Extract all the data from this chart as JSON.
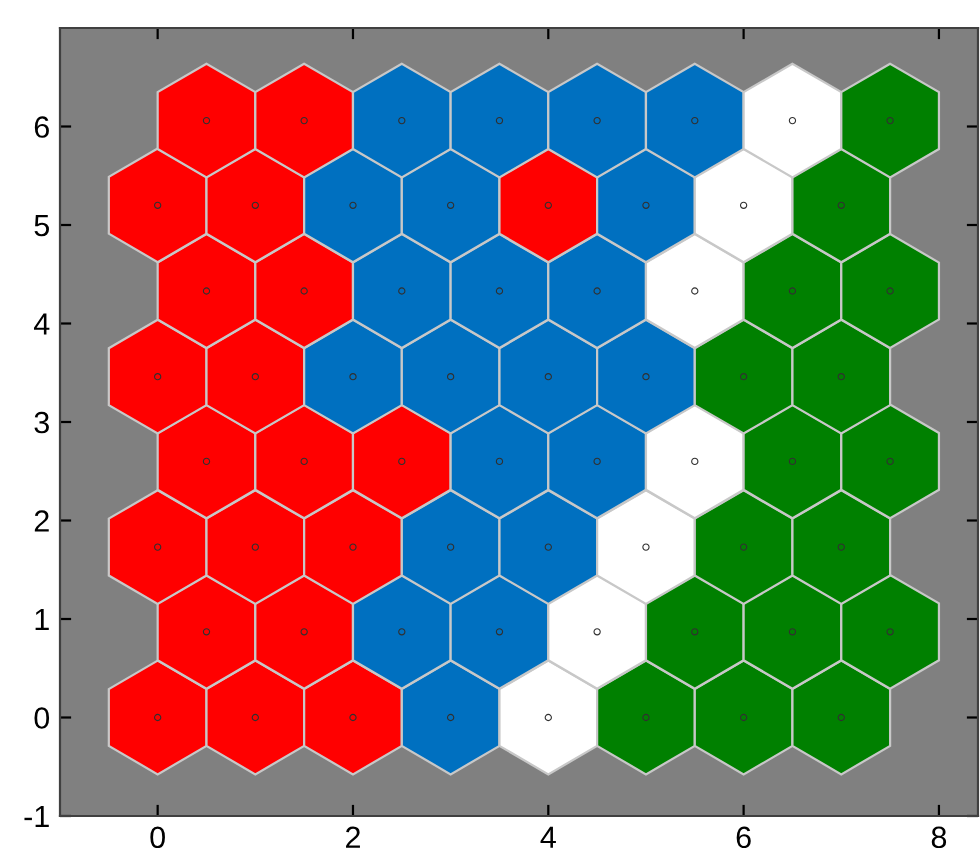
{
  "chart_data": {
    "type": "scatter",
    "series": [
      {
        "x": [
          0,
          1,
          2,
          3,
          4,
          5,
          6,
          7,
          0.5,
          1.5,
          2.5,
          3.5,
          4.5,
          5.5,
          6.5,
          7.5,
          0,
          1,
          2,
          3,
          4,
          5,
          6,
          7,
          0.5,
          1.5,
          2.5,
          3.5,
          4.5,
          5.5,
          6.5,
          7.5,
          0,
          1,
          2,
          3,
          4,
          5,
          6,
          7,
          0.5,
          1.5,
          2.5,
          3.5,
          4.5,
          5.5,
          6.5,
          7.5,
          0,
          1,
          2,
          3,
          4,
          5,
          6,
          7,
          0.5,
          1.5,
          2.5,
          3.5,
          4.5,
          5.5,
          6.5,
          7.5
        ],
        "values": [
          0,
          0,
          0,
          0,
          0,
          0,
          0,
          0,
          0.87,
          0.87,
          0.87,
          0.87,
          0.87,
          0.87,
          0.87,
          0.87,
          1.73,
          1.73,
          1.73,
          1.73,
          1.73,
          1.73,
          1.73,
          1.73,
          2.6,
          2.6,
          2.6,
          2.6,
          2.6,
          2.6,
          2.6,
          2.6,
          3.46,
          3.46,
          3.46,
          3.46,
          3.46,
          3.46,
          3.46,
          3.46,
          4.33,
          4.33,
          4.33,
          4.33,
          4.33,
          4.33,
          4.33,
          4.33,
          5.2,
          5.2,
          5.2,
          5.2,
          5.2,
          5.2,
          5.2,
          5.2,
          6.06,
          6.06,
          6.06,
          6.06,
          6.06,
          6.06,
          6.06,
          6.06
        ],
        "colors": [
          "#ff0000",
          "#ff0000",
          "#ff0000",
          "#0070c0",
          "#ffffff",
          "#008000",
          "#008000",
          "#008000",
          "#ff0000",
          "#ff0000",
          "#0070c0",
          "#0070c0",
          "#ffffff",
          "#008000",
          "#008000",
          "#008000",
          "#ff0000",
          "#ff0000",
          "#ff0000",
          "#0070c0",
          "#0070c0",
          "#ffffff",
          "#008000",
          "#008000",
          "#ff0000",
          "#ff0000",
          "#ff0000",
          "#0070c0",
          "#0070c0",
          "#ffffff",
          "#008000",
          "#008000",
          "#ff0000",
          "#ff0000",
          "#0070c0",
          "#0070c0",
          "#0070c0",
          "#0070c0",
          "#008000",
          "#008000",
          "#ff0000",
          "#ff0000",
          "#0070c0",
          "#0070c0",
          "#0070c0",
          "#ffffff",
          "#008000",
          "#008000",
          "#ff0000",
          "#ff0000",
          "#0070c0",
          "#0070c0",
          "#ff0000",
          "#0070c0",
          "#ffffff",
          "#008000",
          "#ff0000",
          "#ff0000",
          "#0070c0",
          "#0070c0",
          "#0070c0",
          "#0070c0",
          "#ffffff",
          "#008000"
        ]
      }
    ],
    "xlim": [
      -1,
      8.4
    ],
    "ylim": [
      -1,
      7
    ],
    "xticks": [
      0,
      2,
      4,
      6,
      8
    ],
    "yticks": [
      -1,
      0,
      1,
      2,
      3,
      4,
      5,
      6
    ]
  }
}
